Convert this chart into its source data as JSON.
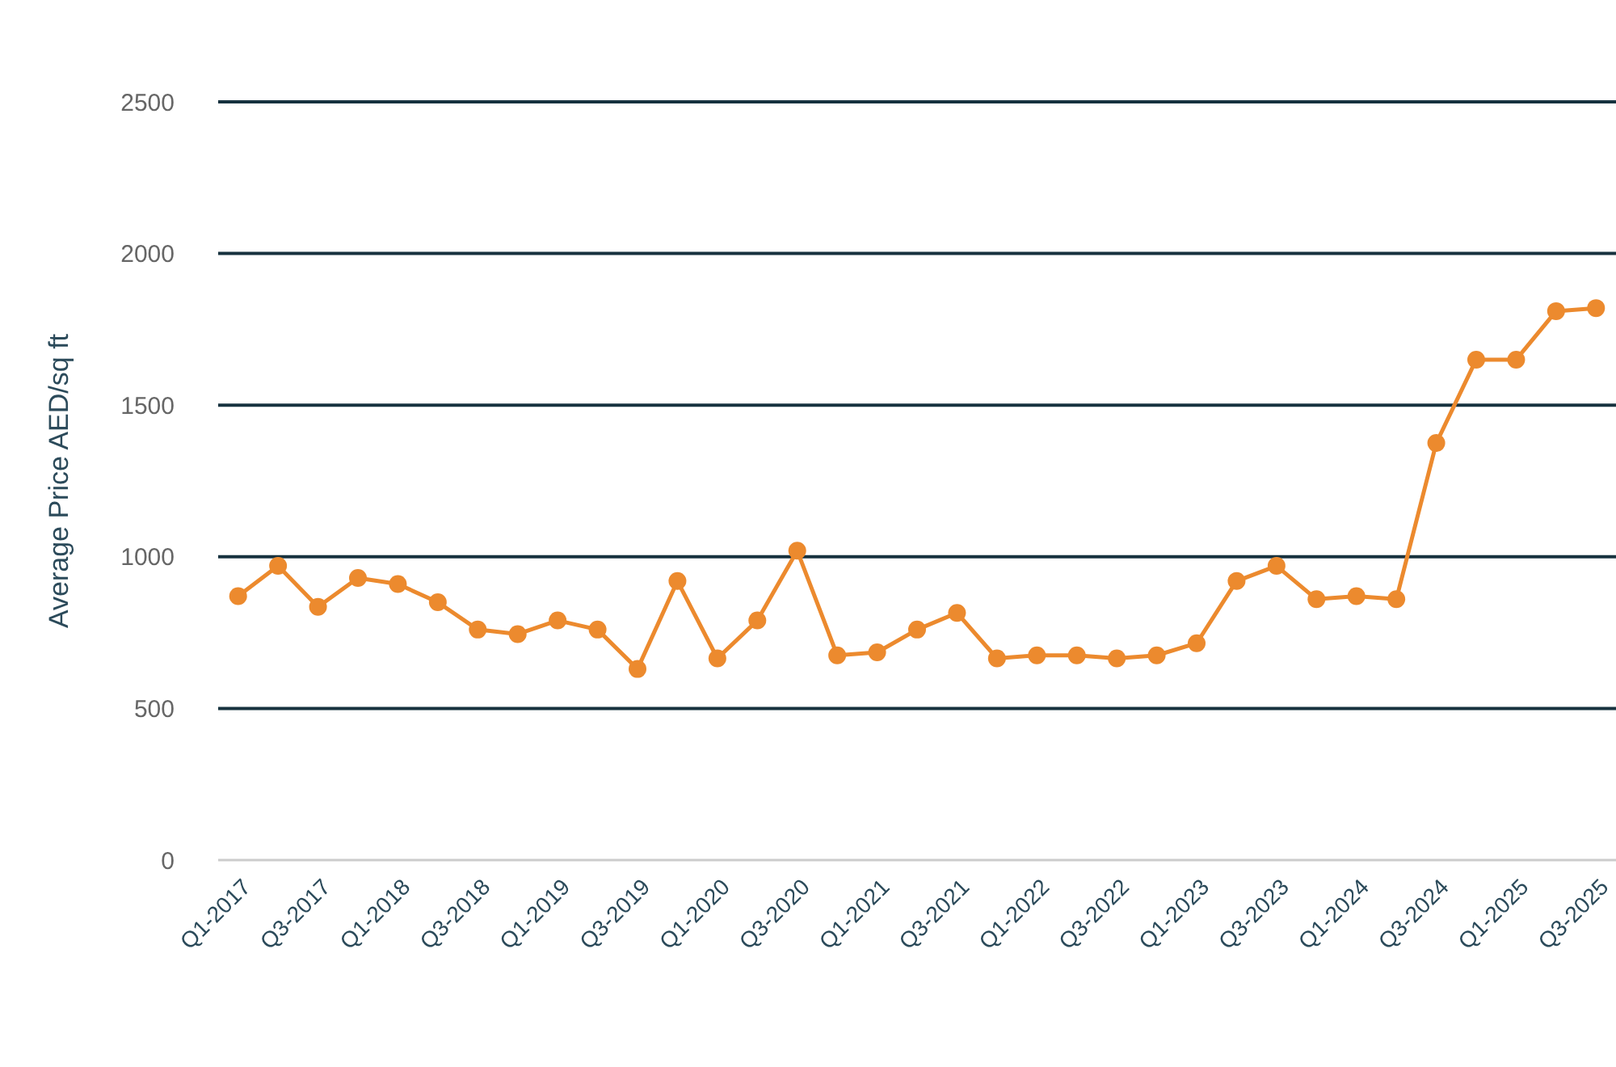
{
  "chart_data": {
    "type": "line",
    "ylabel": "Average Price AED/sq ft",
    "categories": [
      "Q1-2017",
      null,
      "Q3-2017",
      null,
      "Q1-2018",
      null,
      "Q3-2018",
      null,
      "Q1-2019",
      null,
      "Q3-2019",
      null,
      "Q1-2020",
      null,
      "Q3-2020",
      null,
      "Q1-2021",
      null,
      "Q3-2021",
      null,
      "Q1-2022",
      null,
      "Q3-2022",
      null,
      "Q1-2023",
      null,
      "Q3-2023",
      null,
      "Q1-2024",
      null,
      "Q3-2024",
      null,
      "Q1-2025",
      null,
      "Q3-2025"
    ],
    "series": [
      {
        "color": "#ec8a2e",
        "values": [
          870,
          970,
          835,
          930,
          910,
          850,
          760,
          745,
          790,
          760,
          630,
          920,
          665,
          790,
          1020,
          675,
          685,
          760,
          815,
          665,
          675,
          675,
          665,
          675,
          715,
          920,
          970,
          860,
          870,
          860,
          1375,
          1650,
          1650,
          1810,
          1820
        ]
      }
    ],
    "ylim": [
      0,
      2500
    ],
    "yticks": [
      0,
      500,
      1000,
      1500,
      2000,
      2500
    ],
    "grid": "y",
    "marker": "circle",
    "line_style": "solid"
  }
}
